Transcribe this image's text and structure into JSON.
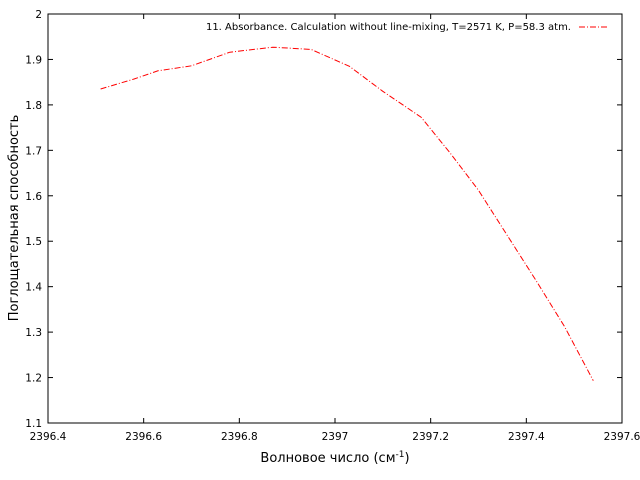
{
  "chart_data": {
    "type": "line",
    "xlabel": "Волновое число (см",
    "xlabel_sup": "-1",
    "xlabel_suffix": ")",
    "ylabel": "Поглощательная способность",
    "xlim": [
      2396.4,
      2397.6
    ],
    "ylim": [
      1.1,
      2.0
    ],
    "x_ticks": [
      "2396.4",
      "2396.6",
      "2396.8",
      "2397",
      "2397.2",
      "2397.4",
      "2397.6"
    ],
    "y_ticks": [
      "1.1",
      "1.2",
      "1.3",
      "1.4",
      "1.5",
      "1.6",
      "1.7",
      "1.8",
      "1.9",
      "2"
    ],
    "grid": false,
    "legend_position": "top-right",
    "series": [
      {
        "name": "11. Absorbance. Calculation without line-mixing, T=2571 K, P=58.3 atm.",
        "color": "#ff0000",
        "dash": "dash-dot",
        "x": [
          2396.51,
          2396.58,
          2396.63,
          2396.7,
          2396.78,
          2396.87,
          2396.95,
          2397.03,
          2397.1,
          2397.18,
          2397.24,
          2397.3,
          2397.36,
          2397.42,
          2397.48,
          2397.54
        ],
        "y": [
          1.835,
          1.857,
          1.875,
          1.886,
          1.916,
          1.927,
          1.922,
          1.885,
          1.83,
          1.773,
          1.695,
          1.612,
          1.513,
          1.414,
          1.312,
          1.193
        ]
      }
    ]
  }
}
